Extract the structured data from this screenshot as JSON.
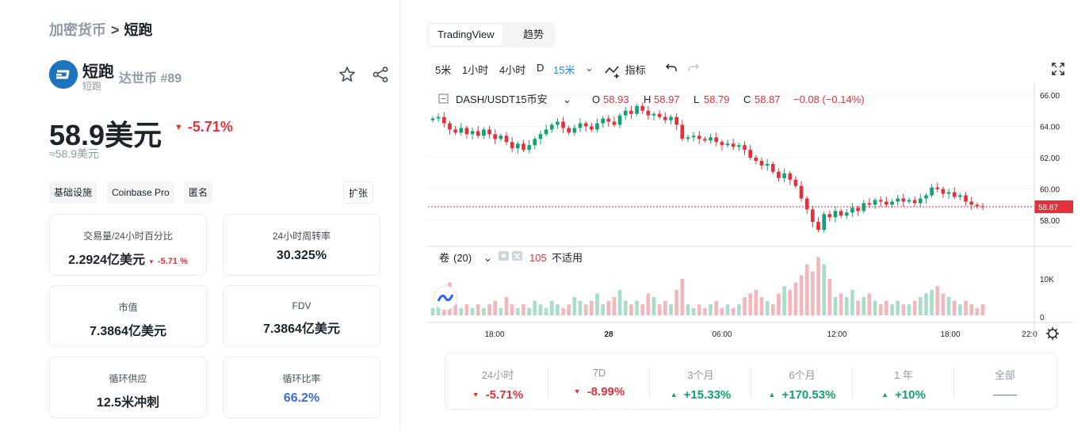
{
  "breadcrumb": {
    "root": "加密货币",
    "sep": ">",
    "current": "短跑"
  },
  "coin": {
    "name": "短跑",
    "subtitle": "短跑",
    "rank": "达世币 #89",
    "logo_color": "#1c75bc"
  },
  "price": {
    "value": "58.9美元",
    "change": "-5.71%",
    "approx": "≈58.9美元"
  },
  "tags": [
    "基础设施",
    "Coinbase Pro",
    "匿名"
  ],
  "expand_label": "扩张",
  "stats": {
    "volume_label": "交易量/24小时百分比",
    "volume_value": "2.2924亿美元",
    "volume_change": "-5.71 %",
    "turnover_label": "24小时周转率",
    "turnover_value": "30.325%",
    "mcap_label": "市值",
    "mcap_value": "7.3864亿美元",
    "fdv_label": "FDV",
    "fdv_value": "7.3864亿美元",
    "supply_label": "循环供应",
    "supply_value": "12.5米冲刺",
    "ratio_label": "循环比率",
    "ratio_value": "66.2%"
  },
  "chart_tabs": [
    "TradingView",
    "趋势"
  ],
  "toolbar": {
    "intervals": [
      "5米",
      "1小时",
      "4小时",
      "D",
      "15米"
    ],
    "active_interval": "15米",
    "indicators": "指标"
  },
  "chart_data": {
    "type": "candlestick",
    "symbol": "DASH/USDT15币安",
    "ohlc_labels": {
      "o": "O",
      "h": "H",
      "l": "L",
      "c": "C"
    },
    "ohlc": {
      "o": "58.93",
      "h": "58.97",
      "l": "58.79",
      "c": "58.87",
      "chg": "−0.08 (−0.14%)"
    },
    "last_price": "58.87",
    "ylim": [
      57.2,
      66.2
    ],
    "yticks": [
      "66.00",
      "64.00",
      "62.00",
      "60.00",
      "58.00"
    ],
    "xticks": [
      "18:00",
      "28",
      "06:00",
      "12:00",
      "18:00",
      "22:0"
    ],
    "volume_label": "卷",
    "volume_period": "(20)",
    "volume_value": "105",
    "volume_na": "不适用",
    "volume_yticks": [
      "10K",
      "0"
    ],
    "closes": [
      64.5,
      64.6,
      64.2,
      63.8,
      63.6,
      63.9,
      63.5,
      63.7,
      63.4,
      63.8,
      63.5,
      63.2,
      63.4,
      63.0,
      62.6,
      62.9,
      62.5,
      62.8,
      63.2,
      63.5,
      63.8,
      64.1,
      64.3,
      63.9,
      63.6,
      63.9,
      64.2,
      64.0,
      63.8,
      64.2,
      64.5,
      64.3,
      64.1,
      64.7,
      65.0,
      64.8,
      65.3,
      65.0,
      64.7,
      64.8,
      64.6,
      64.4,
      64.6,
      64.1,
      63.2,
      63.3,
      63.4,
      63.2,
      63.1,
      63.3,
      63.0,
      62.8,
      62.9,
      62.7,
      62.8,
      62.5,
      62.0,
      61.8,
      61.5,
      61.6,
      61.1,
      60.7,
      61.0,
      60.6,
      60.2,
      59.4,
      58.7,
      57.9,
      57.4,
      58.4,
      58.2,
      58.6,
      58.3,
      58.5,
      58.8,
      58.6,
      59.1,
      59.0,
      59.3,
      59.2,
      59.0,
      59.2,
      59.4,
      59.2,
      59.3,
      59.1,
      59.4,
      59.6,
      60.1,
      60.0,
      59.7,
      59.8,
      59.5,
      59.6,
      59.2,
      59.0,
      58.9,
      58.87
    ],
    "volumes": [
      2,
      3,
      2,
      9,
      3,
      2,
      3,
      2,
      3,
      2,
      3,
      4,
      2,
      5,
      3,
      2,
      3,
      2,
      4,
      3,
      2,
      4,
      3,
      2,
      3,
      5,
      4,
      3,
      4,
      6,
      3,
      4,
      5,
      7,
      4,
      3,
      4,
      3,
      6,
      5,
      3,
      4,
      3,
      7,
      10,
      3,
      2,
      3,
      2,
      3,
      4,
      2,
      3,
      2,
      3,
      5,
      6,
      7,
      5,
      4,
      3,
      6,
      8,
      7,
      9,
      11,
      14,
      12,
      16,
      14,
      10,
      5,
      6,
      5,
      7,
      4,
      5,
      6,
      4,
      3,
      4,
      3,
      4,
      3,
      3,
      4,
      5,
      6,
      7,
      8,
      6,
      5,
      4,
      3,
      4,
      3,
      2,
      3
    ]
  },
  "performance": [
    {
      "label": "24小时",
      "value": "-5.71%",
      "dir": "down"
    },
    {
      "label": "7D",
      "value": "-8.99%",
      "dir": "down"
    },
    {
      "label": "3个月",
      "value": "+15.33%",
      "dir": "up"
    },
    {
      "label": "6个月",
      "value": "+170.53%",
      "dir": "up"
    },
    {
      "label": "1 年",
      "value": "+10%",
      "dir": "up"
    },
    {
      "label": "全部",
      "value": "——",
      "dir": "none"
    }
  ],
  "colors": {
    "up": "#0ea371",
    "down": "#e0323a",
    "accent": "#1e88e5"
  }
}
